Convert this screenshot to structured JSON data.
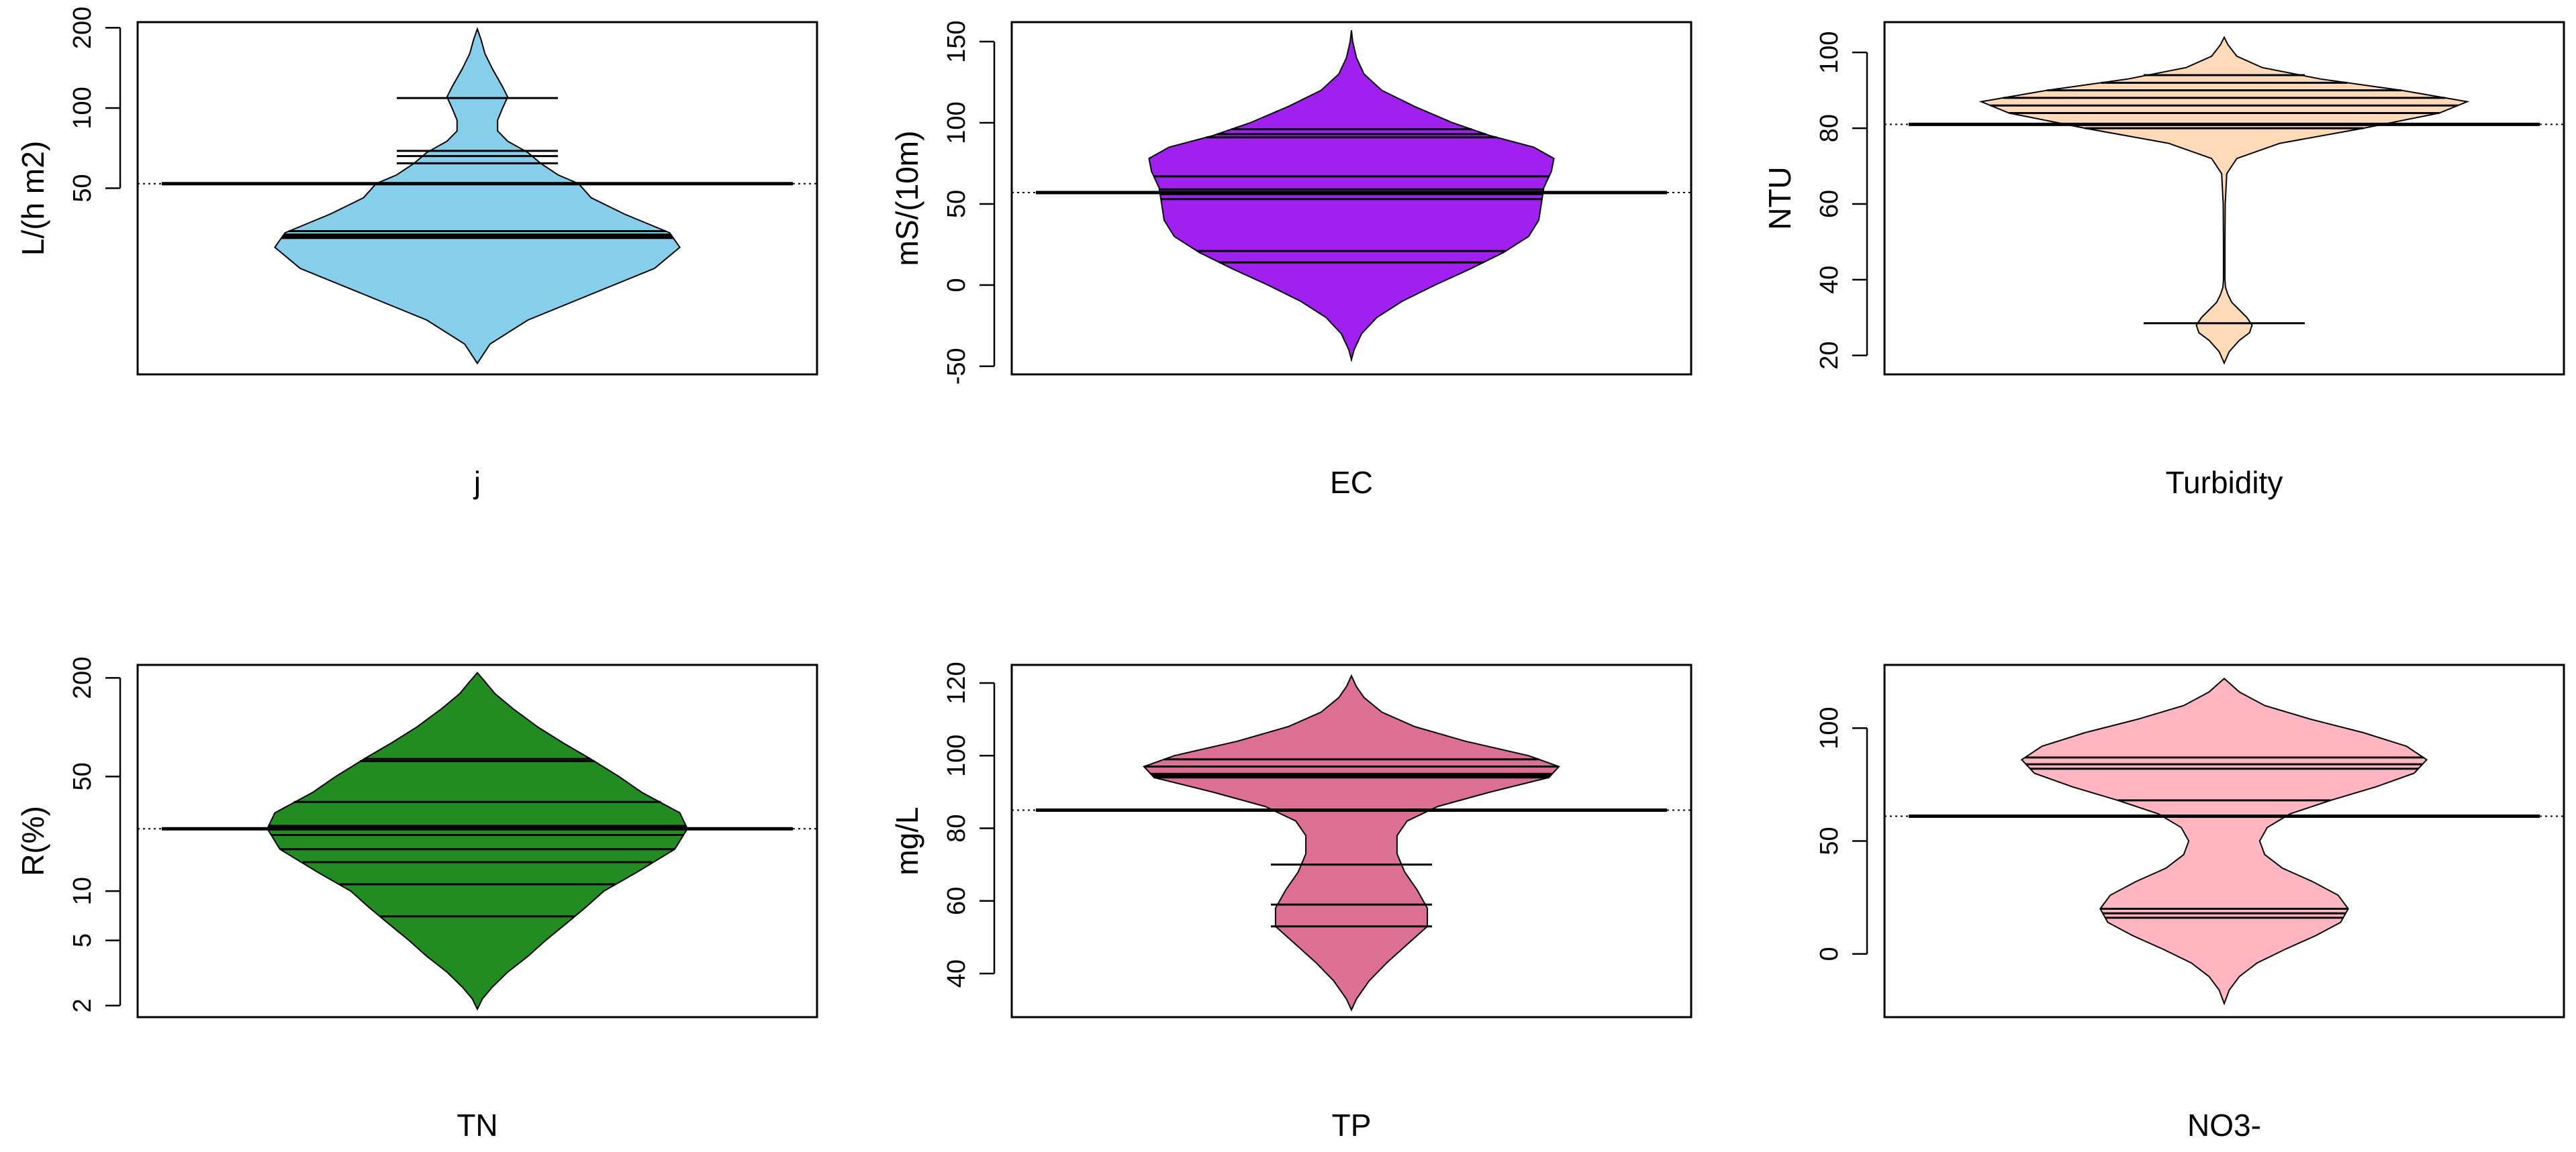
{
  "chart_data": [
    {
      "type": "beanplot",
      "xlabel": "j",
      "ylabel": "L/(h m2)",
      "color": "#87CEEB",
      "log_scale": true,
      "ylim": [
        10,
        210
      ],
      "yticks": [
        {
          "v": 50,
          "label": "50"
        },
        {
          "v": 100,
          "label": "100"
        },
        {
          "v": 200,
          "label": "200"
        }
      ],
      "overall_mean": 52,
      "group_mean": 52,
      "observations": [
        109,
        69,
        66,
        62,
        34.5,
        33.5,
        33,
        32.5
      ],
      "density": [
        [
          11,
          0
        ],
        [
          13,
          0.05
        ],
        [
          16,
          0.2
        ],
        [
          20,
          0.45
        ],
        [
          25,
          0.7
        ],
        [
          30,
          0.8
        ],
        [
          34,
          0.76
        ],
        [
          40,
          0.58
        ],
        [
          46,
          0.45
        ],
        [
          52,
          0.4
        ],
        [
          56,
          0.32
        ],
        [
          62,
          0.25
        ],
        [
          68,
          0.2
        ],
        [
          75,
          0.12
        ],
        [
          82,
          0.08
        ],
        [
          90,
          0.08
        ],
        [
          100,
          0.1
        ],
        [
          110,
          0.12
        ],
        [
          120,
          0.1
        ],
        [
          140,
          0.06
        ],
        [
          160,
          0.03
        ],
        [
          180,
          0.015
        ],
        [
          198,
          0
        ]
      ]
    },
    {
      "type": "beanplot",
      "xlabel": "EC",
      "ylabel": "mS/(10m)",
      "color": "#A020F0",
      "log_scale": false,
      "ylim": [
        -55,
        162
      ],
      "yticks": [
        {
          "v": -50,
          "label": "-50"
        },
        {
          "v": 0,
          "label": "0"
        },
        {
          "v": 50,
          "label": "50"
        },
        {
          "v": 100,
          "label": "100"
        },
        {
          "v": 150,
          "label": "150"
        }
      ],
      "overall_mean": 57,
      "group_mean": 57,
      "observations": [
        96,
        93,
        91,
        67,
        59,
        56,
        53,
        21,
        14
      ],
      "density": [
        [
          -46,
          0
        ],
        [
          -40,
          0.01
        ],
        [
          -30,
          0.04
        ],
        [
          -20,
          0.1
        ],
        [
          -10,
          0.2
        ],
        [
          0,
          0.33
        ],
        [
          10,
          0.47
        ],
        [
          20,
          0.6
        ],
        [
          30,
          0.7
        ],
        [
          40,
          0.74
        ],
        [
          50,
          0.75
        ],
        [
          60,
          0.76
        ],
        [
          70,
          0.79
        ],
        [
          78,
          0.8
        ],
        [
          85,
          0.72
        ],
        [
          92,
          0.55
        ],
        [
          100,
          0.4
        ],
        [
          110,
          0.25
        ],
        [
          120,
          0.12
        ],
        [
          130,
          0.05
        ],
        [
          140,
          0.02
        ],
        [
          150,
          0.005
        ],
        [
          157,
          0
        ]
      ]
    },
    {
      "type": "beanplot",
      "xlabel": "Turbidity",
      "ylabel": "NTU",
      "color": "#FFDAB9",
      "log_scale": false,
      "ylim": [
        15,
        108
      ],
      "yticks": [
        {
          "v": 20,
          "label": "20"
        },
        {
          "v": 40,
          "label": "40"
        },
        {
          "v": 60,
          "label": "60"
        },
        {
          "v": 80,
          "label": "80"
        },
        {
          "v": 100,
          "label": "100"
        }
      ],
      "overall_mean": 81,
      "group_mean": 81,
      "observations": [
        94,
        92,
        90,
        88,
        86,
        84,
        81,
        80,
        28.5
      ],
      "density": [
        [
          18,
          0
        ],
        [
          21,
          0.02
        ],
        [
          24,
          0.06
        ],
        [
          26,
          0.1
        ],
        [
          28,
          0.11
        ],
        [
          30,
          0.09
        ],
        [
          32,
          0.06
        ],
        [
          34,
          0.03
        ],
        [
          36,
          0.015
        ],
        [
          38,
          0.005
        ],
        [
          40,
          0.003
        ],
        [
          50,
          0.003
        ],
        [
          60,
          0.004
        ],
        [
          68,
          0.01
        ],
        [
          72,
          0.05
        ],
        [
          76,
          0.22
        ],
        [
          80,
          0.55
        ],
        [
          84,
          0.85
        ],
        [
          87,
          0.96
        ],
        [
          90,
          0.7
        ],
        [
          93,
          0.38
        ],
        [
          96,
          0.15
        ],
        [
          99,
          0.05
        ],
        [
          102,
          0.015
        ],
        [
          104,
          0
        ]
      ]
    },
    {
      "type": "beanplot",
      "xlabel": "TN",
      "ylabel": "R(%)",
      "color": "#228B22",
      "log_scale": true,
      "ylim": [
        1.7,
        240
      ],
      "yticks": [
        {
          "v": 2,
          "label": "2"
        },
        {
          "v": 5,
          "label": "5"
        },
        {
          "v": 10,
          "label": "10"
        },
        {
          "v": 50,
          "label": "50"
        },
        {
          "v": 200,
          "label": "200"
        }
      ],
      "overall_mean": 24,
      "group_mean": 24,
      "observations": [
        64,
        62,
        35,
        25,
        24.5,
        22,
        18,
        15,
        11,
        7
      ],
      "density": [
        [
          1.9,
          0
        ],
        [
          2.2,
          0.02
        ],
        [
          2.6,
          0.06
        ],
        [
          3.2,
          0.12
        ],
        [
          4,
          0.2
        ],
        [
          5,
          0.27
        ],
        [
          6.5,
          0.36
        ],
        [
          8,
          0.43
        ],
        [
          10,
          0.5
        ],
        [
          13,
          0.63
        ],
        [
          18,
          0.78
        ],
        [
          24,
          0.83
        ],
        [
          30,
          0.8
        ],
        [
          40,
          0.65
        ],
        [
          50,
          0.56
        ],
        [
          65,
          0.44
        ],
        [
          80,
          0.34
        ],
        [
          100,
          0.24
        ],
        [
          130,
          0.14
        ],
        [
          160,
          0.07
        ],
        [
          190,
          0.03
        ],
        [
          215,
          0
        ]
      ]
    },
    {
      "type": "beanplot",
      "xlabel": "TP",
      "ylabel": "mg/L",
      "color": "#DB7093",
      "log_scale": false,
      "ylim": [
        28,
        125
      ],
      "yticks": [
        {
          "v": 40,
          "label": "40"
        },
        {
          "v": 60,
          "label": "60"
        },
        {
          "v": 80,
          "label": "80"
        },
        {
          "v": 100,
          "label": "100"
        },
        {
          "v": 120,
          "label": "120"
        }
      ],
      "overall_mean": 85,
      "group_mean": 85,
      "observations": [
        99,
        97,
        95,
        94.5,
        94,
        70,
        59,
        53
      ],
      "density": [
        [
          30,
          0
        ],
        [
          33,
          0.02
        ],
        [
          38,
          0.07
        ],
        [
          43,
          0.14
        ],
        [
          48,
          0.22
        ],
        [
          53,
          0.3
        ],
        [
          58,
          0.3
        ],
        [
          63,
          0.26
        ],
        [
          68,
          0.21
        ],
        [
          73,
          0.18
        ],
        [
          78,
          0.18
        ],
        [
          82,
          0.22
        ],
        [
          86,
          0.34
        ],
        [
          90,
          0.55
        ],
        [
          94,
          0.78
        ],
        [
          97,
          0.82
        ],
        [
          100,
          0.7
        ],
        [
          104,
          0.45
        ],
        [
          108,
          0.25
        ],
        [
          112,
          0.12
        ],
        [
          116,
          0.05
        ],
        [
          119,
          0.02
        ],
        [
          122,
          0
        ]
      ]
    },
    {
      "type": "beanplot",
      "xlabel": "NO3-",
      "ylabel": "",
      "color": "#FFB6C1",
      "log_scale": false,
      "ylim": [
        -28,
        128
      ],
      "yticks": [
        {
          "v": 0,
          "label": "0"
        },
        {
          "v": 50,
          "label": "50"
        },
        {
          "v": 100,
          "label": "100"
        }
      ],
      "overall_mean": 61,
      "group_mean": 61,
      "observations": [
        87,
        84,
        82,
        68,
        20,
        18,
        16
      ],
      "density": [
        [
          -22,
          0
        ],
        [
          -16,
          0.02
        ],
        [
          -10,
          0.06
        ],
        [
          -4,
          0.13
        ],
        [
          2,
          0.24
        ],
        [
          8,
          0.36
        ],
        [
          14,
          0.46
        ],
        [
          20,
          0.49
        ],
        [
          26,
          0.45
        ],
        [
          32,
          0.35
        ],
        [
          38,
          0.23
        ],
        [
          44,
          0.16
        ],
        [
          50,
          0.14
        ],
        [
          56,
          0.17
        ],
        [
          62,
          0.26
        ],
        [
          68,
          0.42
        ],
        [
          74,
          0.6
        ],
        [
          80,
          0.75
        ],
        [
          86,
          0.8
        ],
        [
          92,
          0.72
        ],
        [
          98,
          0.55
        ],
        [
          104,
          0.34
        ],
        [
          110,
          0.16
        ],
        [
          116,
          0.06
        ],
        [
          122,
          0
        ]
      ]
    }
  ]
}
